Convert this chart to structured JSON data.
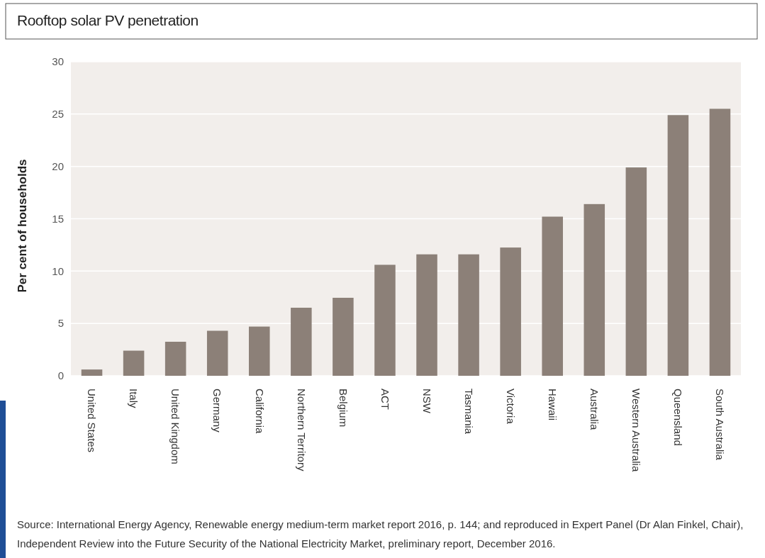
{
  "chart_data": {
    "type": "bar",
    "title": "Rooftop solar PV penetration",
    "ylabel": "Per cent of households",
    "categories": [
      "United States",
      "Italy",
      "United Kingdom",
      "Germany",
      "California",
      "Northern Territory",
      "Belgium",
      "ACT",
      "NSW",
      "Tasmania",
      "Victoria",
      "Hawaii",
      "Australia",
      "Western Australia",
      "Queensland",
      "South Australia"
    ],
    "values": [
      0.6,
      2.4,
      3.25,
      4.3,
      4.7,
      6.5,
      7.45,
      10.6,
      11.6,
      11.6,
      12.25,
      15.2,
      16.4,
      19.9,
      24.9,
      25.5
    ],
    "color": "#8c8078",
    "ylim": [
      0,
      30
    ],
    "yticks": [
      0,
      5,
      10,
      15,
      20,
      25,
      30
    ],
    "grid": "y",
    "annotations": [
      "Source: International Energy Agency, Renewable energy medium-term market report 2016, p. 144; and reproduced in Expert Panel (Dr Alan Finkel, Chair),",
      "Independent Review into the Future Security of the National Electricity Market, preliminary report, December 2016."
    ]
  }
}
